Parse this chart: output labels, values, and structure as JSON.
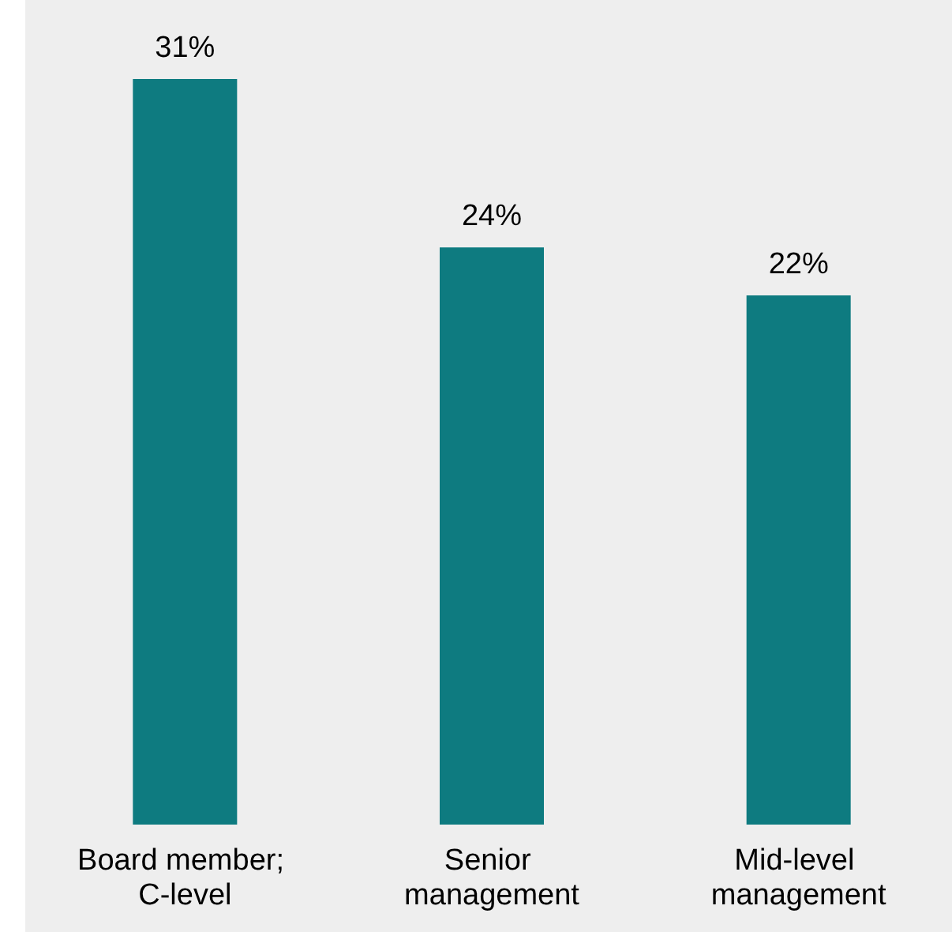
{
  "chart_data": {
    "type": "bar",
    "categories": [
      "Board member; C-level",
      "Senior management",
      "Mid-level management"
    ],
    "values": [
      31,
      24,
      22
    ],
    "color": "#0e7b80",
    "value_labels": [
      "31%",
      "24%",
      "22%"
    ]
  }
}
